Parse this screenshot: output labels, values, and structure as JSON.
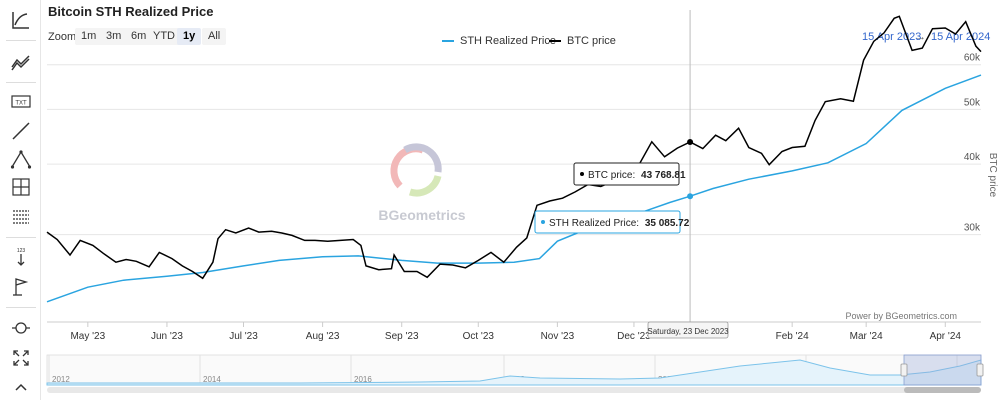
{
  "title": "Bitcoin STH Realized Price",
  "zoom": {
    "label": "Zoom",
    "buttons": [
      "1m",
      "3m",
      "6m",
      "YTD",
      "1y",
      "All"
    ],
    "active": "1y"
  },
  "range": {
    "from": "15 Apr 2023",
    "arrow": "→",
    "to": "15 Apr 2024"
  },
  "legend": [
    {
      "name": "STH Realized Price",
      "color": "#2aa4e0"
    },
    {
      "name": "BTC price",
      "color": "#000000"
    }
  ],
  "watermark": "BGeometrics",
  "credit": "Power by BGeometrics.com",
  "tooltip": {
    "btc_label": "BTC price:",
    "btc_value": "43 768.81",
    "sth_label": "STH Realized Price:",
    "sth_value": "35 085.72",
    "date": "Saturday, 23 Dec 2023"
  },
  "toolbar_icons": [
    "line-chart-icon",
    "indicators-icon",
    "text-annotation-icon",
    "line-draw-icon",
    "fibonacci-icon",
    "crosshair-icon",
    "grid-lines-icon",
    "vertical-arrow-icon",
    "flag-icon",
    "zoom-pan-icon",
    "fullscreen-icon",
    "collapse-icon"
  ],
  "chart_data": {
    "type": "line",
    "y_axis_label": "BTC price",
    "y_ticks": [
      "30k",
      "40k",
      "50k",
      "60k"
    ],
    "y_tick_values": [
      30000,
      40000,
      50000,
      60000
    ],
    "y_log": true,
    "ylim": [
      21000,
      75000
    ],
    "x_ticks": [
      "May '23",
      "Jun '23",
      "Jul '23",
      "Aug '23",
      "Sep '23",
      "Oct '23",
      "Nov '23",
      "Dec '23",
      "Feb '24",
      "Mar '24",
      "Apr '24"
    ],
    "x_tick_dates": [
      "2023-05-01",
      "2023-06-01",
      "2023-07-01",
      "2023-08-01",
      "2023-09-01",
      "2023-10-01",
      "2023-11-01",
      "2023-12-01",
      "2024-02-01",
      "2024-03-01",
      "2024-04-01"
    ],
    "xlim": [
      "2023-04-15",
      "2024-04-15"
    ],
    "series": [
      {
        "name": "STH Realized Price",
        "color": "#2aa4e0",
        "x": [
          "2023-04-15",
          "2023-05-01",
          "2023-05-15",
          "2023-06-01",
          "2023-06-15",
          "2023-07-01",
          "2023-07-15",
          "2023-08-01",
          "2023-08-15",
          "2023-09-01",
          "2023-09-15",
          "2023-10-01",
          "2023-10-15",
          "2023-10-25",
          "2023-11-01",
          "2023-11-15",
          "2023-12-01",
          "2023-12-15",
          "2023-12-23",
          "2024-01-01",
          "2024-01-15",
          "2024-02-01",
          "2024-02-15",
          "2024-03-01",
          "2024-03-15",
          "2024-04-01",
          "2024-04-15"
        ],
        "y": [
          22800,
          24200,
          24900,
          25300,
          25700,
          26400,
          27000,
          27400,
          27500,
          27000,
          26700,
          26700,
          26800,
          27200,
          29200,
          31000,
          32500,
          34200,
          35086,
          36200,
          37600,
          38900,
          40200,
          43500,
          49800,
          54500,
          57500
        ]
      },
      {
        "name": "BTC price",
        "color": "#000000",
        "x": [
          "2023-04-15",
          "2023-04-19",
          "2023-04-24",
          "2023-04-28",
          "2023-05-03",
          "2023-05-07",
          "2023-05-12",
          "2023-05-16",
          "2023-05-20",
          "2023-05-25",
          "2023-05-29",
          "2023-06-03",
          "2023-06-07",
          "2023-06-11",
          "2023-06-15",
          "2023-06-19",
          "2023-06-21",
          "2023-06-24",
          "2023-06-28",
          "2023-07-03",
          "2023-07-07",
          "2023-07-12",
          "2023-07-16",
          "2023-07-20",
          "2023-07-25",
          "2023-07-29",
          "2023-08-03",
          "2023-08-08",
          "2023-08-13",
          "2023-08-16",
          "2023-08-18",
          "2023-08-23",
          "2023-08-28",
          "2023-08-29",
          "2023-09-02",
          "2023-09-07",
          "2023-09-11",
          "2023-09-16",
          "2023-09-21",
          "2023-09-26",
          "2023-10-01",
          "2023-10-06",
          "2023-10-11",
          "2023-10-16",
          "2023-10-20",
          "2023-10-24",
          "2023-10-29",
          "2023-11-03",
          "2023-11-08",
          "2023-11-13",
          "2023-11-18",
          "2023-11-23",
          "2023-11-28",
          "2023-12-03",
          "2023-12-08",
          "2023-12-13",
          "2023-12-18",
          "2023-12-23",
          "2023-12-28",
          "2024-01-02",
          "2024-01-06",
          "2024-01-11",
          "2024-01-15",
          "2024-01-20",
          "2024-01-23",
          "2024-01-28",
          "2024-02-01",
          "2024-02-06",
          "2024-02-10",
          "2024-02-14",
          "2024-02-20",
          "2024-02-25",
          "2024-02-29",
          "2024-03-04",
          "2024-03-08",
          "2024-03-12",
          "2024-03-14",
          "2024-03-19",
          "2024-03-23",
          "2024-03-27",
          "2024-04-01",
          "2024-04-05",
          "2024-04-09",
          "2024-04-13",
          "2024-04-15"
        ],
        "y": [
          30300,
          29400,
          27600,
          29300,
          28700,
          27800,
          26800,
          27100,
          26900,
          26300,
          27900,
          27200,
          26400,
          25800,
          25100,
          26800,
          29500,
          30600,
          30200,
          30800,
          30300,
          30400,
          30200,
          29900,
          29300,
          29300,
          29200,
          29300,
          29400,
          28700,
          26400,
          26000,
          26100,
          27600,
          25800,
          25800,
          25200,
          26600,
          26500,
          26200,
          27000,
          27900,
          26800,
          28500,
          29600,
          33800,
          34400,
          34800,
          35700,
          36800,
          36500,
          37300,
          37800,
          39900,
          43800,
          41200,
          42700,
          43769,
          42600,
          45000,
          44000,
          46300,
          42800,
          41800,
          39900,
          42100,
          42800,
          43000,
          47800,
          51600,
          52200,
          51700,
          61100,
          66000,
          68300,
          72500,
          73100,
          63600,
          64200,
          69500,
          69700,
          68000,
          71500,
          64700,
          63300
        ]
      }
    ]
  }
}
